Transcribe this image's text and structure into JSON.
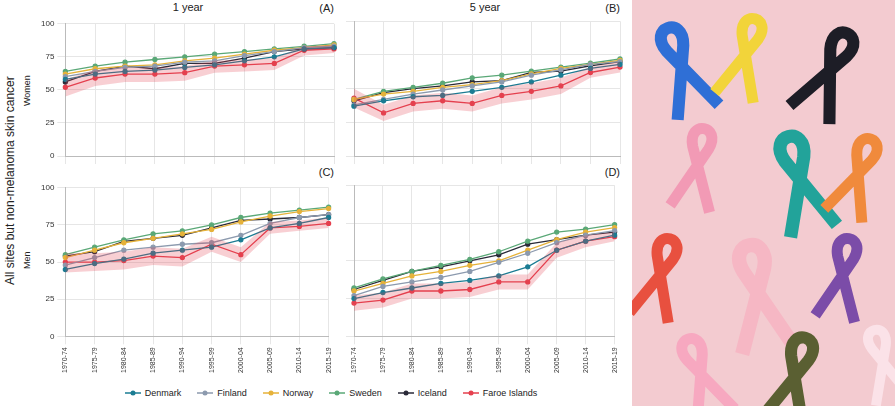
{
  "y_label": "All sites but non-melanoma skin cancer",
  "legend": "bottom",
  "chart_data": [
    {
      "type": "line",
      "panel": "(A)",
      "title": "1 year",
      "row_label": "Women",
      "categories": [
        "1970-74",
        "1975-79",
        "1980-84",
        "1985-89",
        "1990-94",
        "1995-99",
        "2000-04",
        "2005-09",
        "2010-14",
        "2015-19"
      ],
      "ylim": [
        0,
        100
      ],
      "yticks": [
        0,
        25,
        50,
        75,
        100
      ],
      "grid": true,
      "tick_labels": "y",
      "series": [
        {
          "name": "Denmark",
          "color": "#1b7c93",
          "marker": "circle",
          "values": [
            58,
            62,
            64,
            65,
            67,
            69,
            72,
            75,
            81,
            82
          ]
        },
        {
          "name": "Finland",
          "color": "#8c9aae",
          "marker": "circle",
          "values": [
            60,
            64,
            67,
            68,
            71,
            72,
            76,
            79,
            82,
            83
          ]
        },
        {
          "name": "Norway",
          "color": "#e6b23a",
          "marker": "circle",
          "values": [
            62,
            66,
            68,
            69,
            72,
            74,
            77,
            80,
            82,
            84
          ]
        },
        {
          "name": "Sweden",
          "color": "#5aa877",
          "marker": "circle",
          "values": [
            64,
            68,
            71,
            73,
            75,
            77,
            79,
            81,
            83,
            85
          ]
        },
        {
          "name": "Iceland",
          "color": "#2a2a38",
          "marker": "circle",
          "values": [
            56,
            64,
            68,
            66,
            70,
            70,
            74,
            79,
            81,
            82
          ]
        },
        {
          "name": "Faroe Islands",
          "color": "#e5404e",
          "marker": "circle",
          "values": [
            52,
            59,
            62,
            62,
            63,
            68,
            69,
            70,
            80,
            81
          ],
          "ci_lower": [
            45,
            53,
            56,
            56,
            57,
            63,
            64,
            65,
            76,
            78
          ],
          "ci_upper": [
            58,
            65,
            67,
            67,
            68,
            72,
            73,
            74,
            83,
            84
          ]
        }
      ]
    },
    {
      "type": "line",
      "panel": "(B)",
      "title": "5 year",
      "categories": [
        "1970-74",
        "1975-79",
        "1980-84",
        "1985-89",
        "1990-94",
        "1995-99",
        "2000-04",
        "2005-09",
        "2010-14",
        "2015-19"
      ],
      "ylim": [
        0,
        100
      ],
      "yticks": [
        0,
        25,
        50,
        75,
        100
      ],
      "grid": true,
      "tick_labels": false,
      "series": [
        {
          "name": "Denmark",
          "color": "#1b7c93",
          "marker": "circle",
          "values": [
            37,
            41,
            44,
            45,
            48,
            51,
            55,
            60,
            65,
            68
          ]
        },
        {
          "name": "Finland",
          "color": "#8c9aae",
          "marker": "circle",
          "values": [
            38,
            42,
            46,
            49,
            52,
            55,
            60,
            64,
            68,
            70
          ]
        },
        {
          "name": "Norway",
          "color": "#e6b23a",
          "marker": "circle",
          "values": [
            42,
            46,
            48,
            51,
            53,
            56,
            61,
            65,
            68,
            71
          ]
        },
        {
          "name": "Sweden",
          "color": "#5aa877",
          "marker": "circle",
          "values": [
            42,
            48,
            51,
            54,
            58,
            60,
            63,
            66,
            69,
            72
          ]
        },
        {
          "name": "Iceland",
          "color": "#2a2a38",
          "marker": "circle",
          "values": [
            41,
            47,
            50,
            52,
            55,
            56,
            62,
            63,
            67,
            70
          ]
        },
        {
          "name": "Faroe Islands",
          "color": "#e5404e",
          "marker": "circle",
          "values": [
            43,
            32,
            39,
            41,
            39,
            45,
            48,
            52,
            62,
            66
          ],
          "ci_lower": [
            36,
            26,
            33,
            35,
            33,
            39,
            42,
            46,
            58,
            62
          ],
          "ci_upper": [
            50,
            38,
            45,
            47,
            45,
            51,
            54,
            58,
            66,
            70
          ]
        }
      ]
    },
    {
      "type": "line",
      "panel": "(C)",
      "row_label": "Men",
      "categories": [
        "1970-74",
        "1975-79",
        "1980-84",
        "1985-89",
        "1990-94",
        "1995-99",
        "2000-04",
        "2005-09",
        "2010-14",
        "2015-19"
      ],
      "ylim": [
        0,
        100
      ],
      "yticks": [
        0,
        25,
        50,
        75,
        100
      ],
      "grid": true,
      "tick_labels": true,
      "series": [
        {
          "name": "Denmark",
          "color": "#1b7c93",
          "marker": "circle",
          "values": [
            45,
            49,
            52,
            56,
            58,
            60,
            65,
            73,
            76,
            80
          ]
        },
        {
          "name": "Finland",
          "color": "#8c9aae",
          "marker": "circle",
          "values": [
            48,
            53,
            58,
            60,
            62,
            63,
            68,
            76,
            80,
            82
          ]
        },
        {
          "name": "Norway",
          "color": "#e6b23a",
          "marker": "circle",
          "values": [
            53,
            58,
            63,
            66,
            69,
            72,
            77,
            81,
            84,
            86
          ]
        },
        {
          "name": "Sweden",
          "color": "#5aa877",
          "marker": "circle",
          "values": [
            55,
            60,
            65,
            69,
            71,
            75,
            80,
            83,
            85,
            87
          ]
        },
        {
          "name": "Iceland",
          "color": "#2a2a38",
          "marker": "circle",
          "values": [
            54,
            57,
            64,
            66,
            68,
            73,
            78,
            79,
            80,
            82
          ]
        },
        {
          "name": "Faroe Islands",
          "color": "#e5404e",
          "marker": "circle",
          "values": [
            50,
            50,
            51,
            54,
            53,
            62,
            55,
            73,
            74,
            76
          ],
          "ci_lower": [
            43,
            44,
            45,
            48,
            47,
            57,
            50,
            69,
            71,
            73
          ],
          "ci_upper": [
            56,
            56,
            57,
            60,
            59,
            67,
            60,
            77,
            78,
            80
          ]
        }
      ]
    },
    {
      "type": "line",
      "panel": "(D)",
      "categories": [
        "1970-74",
        "1975-79",
        "1980-84",
        "1985-89",
        "1990-94",
        "1995-99",
        "2000-04",
        "2005-09",
        "2010-14",
        "2015-19"
      ],
      "ylim": [
        0,
        100
      ],
      "yticks": [
        0,
        25,
        50,
        75,
        100
      ],
      "grid": true,
      "tick_labels": "x",
      "series": [
        {
          "name": "Denmark",
          "color": "#1b7c93",
          "marker": "circle",
          "values": [
            25,
            29,
            32,
            35,
            37,
            40,
            46,
            57,
            63,
            67
          ]
        },
        {
          "name": "Finland",
          "color": "#8c9aae",
          "marker": "circle",
          "values": [
            27,
            33,
            36,
            39,
            43,
            49,
            55,
            62,
            67,
            70
          ]
        },
        {
          "name": "Norway",
          "color": "#e6b23a",
          "marker": "circle",
          "values": [
            30,
            35,
            40,
            43,
            47,
            50,
            57,
            64,
            69,
            72
          ]
        },
        {
          "name": "Sweden",
          "color": "#5aa877",
          "marker": "circle",
          "values": [
            32,
            38,
            43,
            47,
            51,
            56,
            63,
            69,
            71,
            74
          ]
        },
        {
          "name": "Iceland",
          "color": "#2a2a38",
          "marker": "circle",
          "values": [
            31,
            37,
            43,
            46,
            50,
            54,
            61,
            64,
            67,
            69
          ]
        },
        {
          "name": "Faroe Islands",
          "color": "#e5404e",
          "marker": "circle",
          "values": [
            22,
            24,
            30,
            30,
            31,
            36,
            36,
            57,
            63,
            66
          ],
          "ci_lower": [
            17,
            19,
            25,
            25,
            26,
            31,
            31,
            52,
            59,
            63
          ],
          "ci_upper": [
            27,
            29,
            35,
            35,
            36,
            41,
            41,
            62,
            67,
            69
          ]
        }
      ]
    }
  ]
}
